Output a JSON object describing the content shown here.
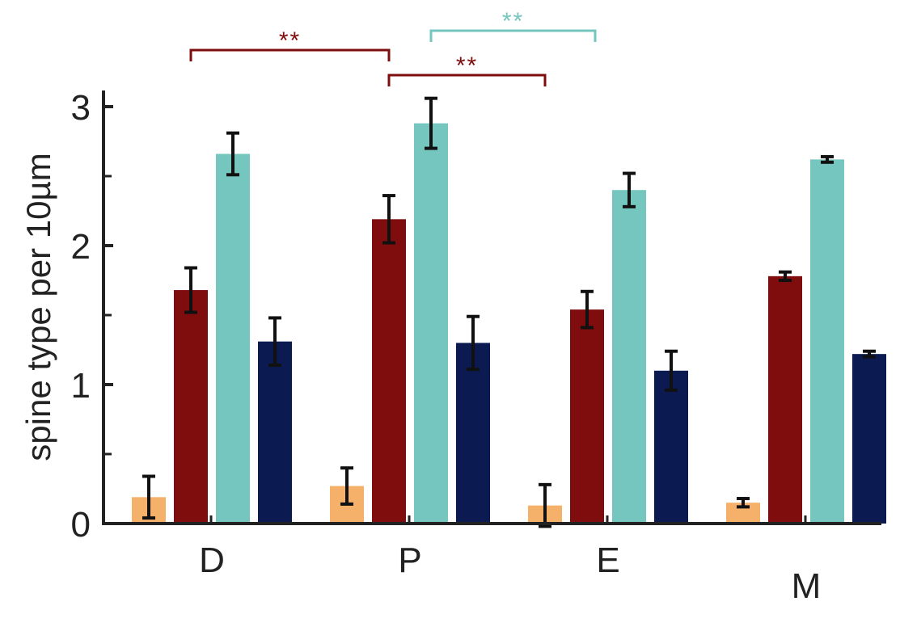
{
  "chart_data": {
    "type": "bar",
    "title": "",
    "xlabel": "",
    "ylabel": "spine type per 10µm",
    "ylim": [
      0,
      3
    ],
    "yticks": [
      0,
      1,
      2,
      3
    ],
    "grid": false,
    "categories": [
      "D",
      "P",
      "E",
      "M"
    ],
    "series": [
      {
        "color": "#F5B06A",
        "values": [
          0.19,
          0.27,
          0.13,
          0.15
        ],
        "errors": [
          0.15,
          0.13,
          0.15,
          0.03
        ]
      },
      {
        "color": "#7F0D0D",
        "values": [
          1.68,
          2.19,
          1.54,
          1.78
        ],
        "errors": [
          0.16,
          0.17,
          0.13,
          0.03
        ]
      },
      {
        "color": "#74C6BE",
        "values": [
          2.66,
          2.88,
          2.4,
          2.62
        ],
        "errors": [
          0.15,
          0.18,
          0.12,
          0.02
        ]
      },
      {
        "color": "#0B1A50",
        "values": [
          1.31,
          1.3,
          1.1,
          1.22
        ],
        "errors": [
          0.17,
          0.19,
          0.14,
          0.02
        ]
      }
    ],
    "annotations": [
      {
        "text": "**",
        "from_category": "D",
        "to_category": "P",
        "color": "#7F0D0D",
        "level": 3
      },
      {
        "text": "**",
        "from_category": "P",
        "to_category": "E",
        "color": "#7F0D0D",
        "level": 2
      },
      {
        "text": "**",
        "from_category": "P",
        "to_category": "E",
        "color": "#74C6BE",
        "level": 4
      }
    ]
  }
}
